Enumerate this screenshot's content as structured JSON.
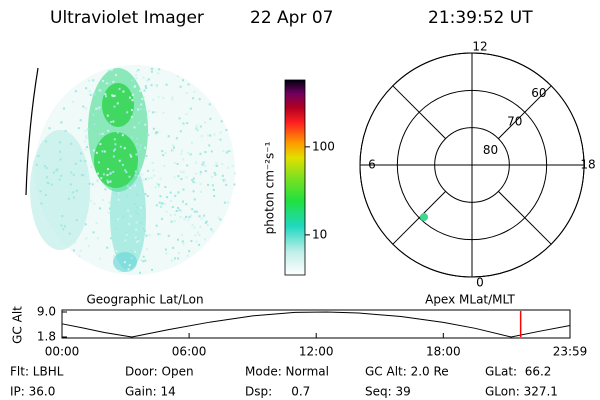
{
  "header": {
    "title": "Ultraviolet Imager",
    "date": "22 Apr 07",
    "time": "21:39:52 UT"
  },
  "colorbar": {
    "label": "photon cm⁻²s⁻¹",
    "log": true,
    "lim": [
      3.5,
      575
    ],
    "ticks": [
      10,
      100
    ]
  },
  "polar": {
    "hours": [
      12,
      18,
      6,
      0
    ],
    "lats": [
      80,
      70,
      60
    ]
  },
  "chart_data": {
    "type": "line",
    "title": "Geographic Lat/Lon",
    "subtitle": "Apex MLat/MLT",
    "ylabel": "GC Alt",
    "x": [
      0,
      1,
      2,
      3.3,
      5,
      7,
      9,
      11,
      12.5,
      14,
      16,
      18,
      19.5,
      21.2,
      22.5,
      23.98
    ],
    "series": [
      {
        "name": "GC Alt",
        "color": "#000000",
        "values": [
          5.6,
          4.4,
          3.1,
          1.8,
          3.9,
          6.1,
          7.9,
          8.9,
          9.0,
          8.7,
          7.7,
          6.0,
          4.3,
          1.8,
          3.4,
          5.1
        ]
      }
    ],
    "marker_x": 21.65,
    "marker_color": "#ff0000",
    "xlim": [
      0,
      23.98
    ],
    "ylim": [
      1.8,
      9.0
    ],
    "xticks": [
      {
        "value": 0,
        "label": "00:00"
      },
      {
        "value": 6,
        "label": "06:00"
      },
      {
        "value": 12,
        "label": "12:00"
      },
      {
        "value": 18,
        "label": "18:00"
      },
      {
        "value": 23.98,
        "label": "23:59"
      }
    ],
    "yticks": [
      {
        "value": 1.8,
        "label": "1.8"
      },
      {
        "value": 9.0,
        "label": "9.0"
      }
    ]
  },
  "footer": {
    "rows": [
      [
        "Flt: LBHL",
        "Door: Open",
        "Mode: Normal",
        "GC Alt: 2.0 Re",
        "GLat:  66.2"
      ],
      [
        "IP: 36.0",
        "Gain: 14",
        "Dsp:     0.7",
        "Seq: 39",
        "GLon: 327.1"
      ]
    ]
  }
}
